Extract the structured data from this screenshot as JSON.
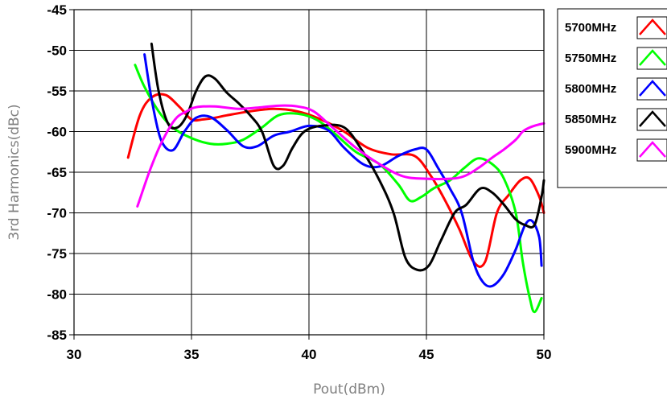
{
  "chart_data": {
    "type": "line",
    "title": "",
    "xlabel": "Pout(dBm)",
    "ylabel": "3rd Harmonics(dBc)",
    "xlim": [
      30,
      50
    ],
    "ylim": [
      -85,
      -45
    ],
    "xticks": [
      30,
      35,
      40,
      45,
      50
    ],
    "yticks": [
      -45,
      -50,
      -55,
      -60,
      -65,
      -70,
      -75,
      -80,
      -85
    ],
    "xtick_labels": [
      "30",
      "35",
      "40",
      "45",
      "50"
    ],
    "ytick_labels": [
      "-45",
      "-50",
      "-55",
      "-60",
      "-65",
      "-70",
      "-75",
      "-80",
      "-85"
    ],
    "grid": true,
    "legend_position": "right-outside-top",
    "series": [
      {
        "name": "5700MHz",
        "color": "#ff0000",
        "x": [
          32.3,
          32.8,
          33.3,
          33.9,
          34.5,
          35.0,
          35.5,
          36.0,
          36.5,
          37.5,
          38.5,
          39.5,
          40.5,
          41.5,
          42.5,
          43.5,
          44.5,
          45.2,
          45.8,
          46.4,
          47.0,
          47.5,
          48.0,
          48.5,
          49.0,
          49.4,
          49.8,
          50.0
        ],
        "y": [
          -63.2,
          -58.0,
          -55.8,
          -55.5,
          -57.0,
          -58.5,
          -58.5,
          -58.3,
          -58.0,
          -57.5,
          -57.2,
          -57.5,
          -58.5,
          -60.0,
          -62.0,
          -62.8,
          -63.0,
          -65.5,
          -68.5,
          -72.0,
          -76.0,
          -76.0,
          -70.0,
          -67.8,
          -66.0,
          -65.8,
          -68.0,
          -70.0
        ]
      },
      {
        "name": "5750MHz",
        "color": "#00ff00",
        "x": [
          32.6,
          33.0,
          33.6,
          34.2,
          35.0,
          35.8,
          36.5,
          37.2,
          38.0,
          38.7,
          39.5,
          40.3,
          41.0,
          42.0,
          43.0,
          43.8,
          44.3,
          44.8,
          45.3,
          46.0,
          46.6,
          47.2,
          47.8,
          48.3,
          48.8,
          49.1,
          49.4,
          49.6,
          49.9
        ],
        "y": [
          -51.8,
          -54.5,
          -57.5,
          -59.5,
          -60.8,
          -61.5,
          -61.5,
          -61.0,
          -59.5,
          -58.0,
          -57.8,
          -58.5,
          -60.0,
          -62.5,
          -64.0,
          -66.5,
          -68.5,
          -68.0,
          -67.0,
          -66.0,
          -64.5,
          -63.3,
          -64.0,
          -65.8,
          -70.0,
          -76.0,
          -80.5,
          -82.2,
          -80.5
        ]
      },
      {
        "name": "5800MHz",
        "color": "#0000ff",
        "x": [
          33.0,
          33.3,
          33.7,
          34.2,
          34.7,
          35.2,
          35.8,
          36.5,
          37.2,
          37.8,
          38.5,
          39.2,
          40.0,
          40.8,
          41.5,
          42.3,
          43.0,
          43.8,
          44.5,
          45.0,
          45.5,
          46.0,
          46.5,
          47.0,
          47.4,
          47.8,
          48.3,
          48.8,
          49.2,
          49.5,
          49.8,
          49.9
        ],
        "y": [
          -50.5,
          -56.0,
          -61.0,
          -62.3,
          -60.0,
          -58.3,
          -58.2,
          -59.8,
          -61.8,
          -61.8,
          -60.5,
          -60.0,
          -59.3,
          -59.8,
          -62.0,
          -64.0,
          -64.3,
          -63.0,
          -62.2,
          -62.2,
          -64.5,
          -67.0,
          -70.0,
          -76.0,
          -78.5,
          -79.0,
          -77.5,
          -74.5,
          -71.5,
          -71.0,
          -73.0,
          -76.5
        ]
      },
      {
        "name": "5850MHz",
        "color": "#000000",
        "x": [
          33.3,
          33.6,
          34.0,
          34.4,
          34.8,
          35.2,
          35.6,
          36.0,
          36.5,
          37.0,
          37.5,
          38.0,
          38.5,
          38.9,
          39.3,
          39.8,
          40.5,
          41.5,
          42.3,
          43.0,
          43.6,
          44.1,
          44.6,
          45.1,
          45.6,
          46.2,
          46.7,
          47.3,
          47.8,
          48.3,
          48.8,
          49.2,
          49.6,
          49.9,
          50.0
        ],
        "y": [
          -49.2,
          -55.0,
          -59.0,
          -59.5,
          -58.0,
          -55.0,
          -53.2,
          -53.5,
          -55.2,
          -56.5,
          -58.0,
          -60.0,
          -64.2,
          -64.2,
          -62.0,
          -60.0,
          -59.3,
          -59.5,
          -62.5,
          -66.0,
          -70.0,
          -75.5,
          -77.0,
          -76.5,
          -73.5,
          -70.0,
          -69.0,
          -67.0,
          -67.5,
          -69.0,
          -70.8,
          -71.5,
          -71.5,
          -68.0,
          -66.0
        ]
      },
      {
        "name": "5900MHz",
        "color": "#ff00ff",
        "x": [
          32.7,
          33.2,
          33.7,
          34.3,
          34.8,
          35.2,
          36.0,
          37.0,
          38.0,
          38.8,
          39.5,
          40.2,
          41.0,
          42.0,
          43.0,
          44.0,
          45.0,
          46.0,
          46.6,
          47.2,
          47.8,
          48.3,
          48.8,
          49.1,
          49.4,
          49.7,
          50.0
        ],
        "y": [
          -69.2,
          -65.0,
          -61.5,
          -58.5,
          -57.5,
          -57.0,
          -56.9,
          -57.2,
          -57.0,
          -56.8,
          -56.9,
          -57.5,
          -59.5,
          -62.0,
          -64.0,
          -65.5,
          -65.8,
          -65.8,
          -65.5,
          -64.5,
          -63.2,
          -62.2,
          -61.0,
          -60.0,
          -59.5,
          -59.2,
          -59.0
        ]
      }
    ]
  }
}
